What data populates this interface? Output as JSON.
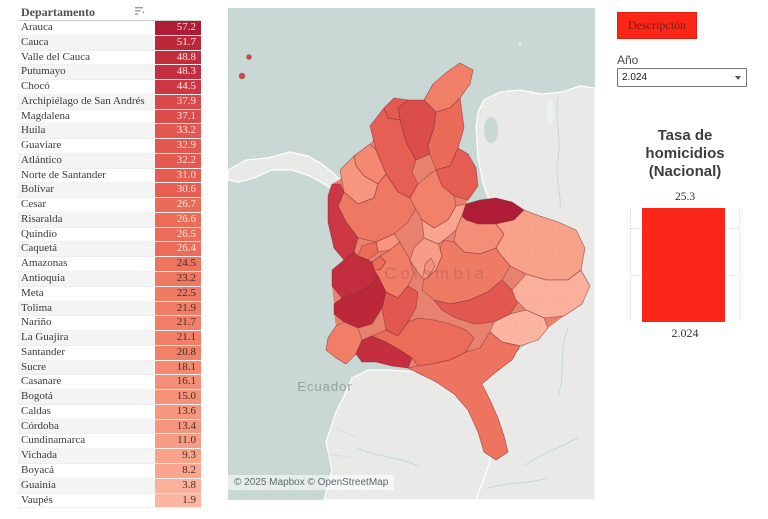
{
  "accent_color": "#fa2617",
  "table": {
    "header": "Departamento",
    "rows": [
      {
        "name": "Arauca",
        "value": "57.2"
      },
      {
        "name": "Cauca",
        "value": "51.7"
      },
      {
        "name": "Valle del Cauca",
        "value": "48.8"
      },
      {
        "name": "Putumayo",
        "value": "48.3"
      },
      {
        "name": "Chocó",
        "value": "44.5"
      },
      {
        "name": "Archipiélago de San Andrés",
        "value": "37.9"
      },
      {
        "name": "Magdalena",
        "value": "37.1"
      },
      {
        "name": "Huila",
        "value": "33.2"
      },
      {
        "name": "Guaviare",
        "value": "32.9"
      },
      {
        "name": "Atlántico",
        "value": "32.2"
      },
      {
        "name": "Norte de Santander",
        "value": "31.0"
      },
      {
        "name": "Bolívar",
        "value": "30.6"
      },
      {
        "name": "Cesar",
        "value": "26.7"
      },
      {
        "name": "Risaralda",
        "value": "26.6"
      },
      {
        "name": "Quindío",
        "value": "26.5"
      },
      {
        "name": "Caquetá",
        "value": "26.4"
      },
      {
        "name": "Amazonas",
        "value": "24.5"
      },
      {
        "name": "Antioquia",
        "value": "23.2"
      },
      {
        "name": "Meta",
        "value": "22.5"
      },
      {
        "name": "Tolima",
        "value": "21.9"
      },
      {
        "name": "Nariño",
        "value": "21.7"
      },
      {
        "name": "La Guajira",
        "value": "21.1"
      },
      {
        "name": "Santander",
        "value": "20.8"
      },
      {
        "name": "Sucre",
        "value": "18.1"
      },
      {
        "name": "Casanare",
        "value": "16.1"
      },
      {
        "name": "Bogotá",
        "value": "15.0"
      },
      {
        "name": "Caldas",
        "value": "13.6"
      },
      {
        "name": "Córdoba",
        "value": "13.4"
      },
      {
        "name": "Cundinamarca",
        "value": "11.0"
      },
      {
        "name": "Vichada",
        "value": "9.3"
      },
      {
        "name": "Boyacá",
        "value": "8.2"
      },
      {
        "name": "Guainía",
        "value": "3.8"
      },
      {
        "name": "Vaupés",
        "value": "1.9"
      }
    ]
  },
  "map": {
    "country_label": "Colombia",
    "neighbor_label": "Ecuador",
    "attribution": "© 2025 Mapbox © OpenStreetMap",
    "sea_color": "#c9d8d4",
    "land_color": "#e9eae8"
  },
  "controls": {
    "description_button": "Descripción",
    "year_label": "Año",
    "year_value": "2.024"
  },
  "national": {
    "title": "Tasa de homicidios (Nacional)",
    "bar_value": "25.3",
    "bar_x_label": "2.024"
  },
  "color_scale": {
    "stops": [
      [
        1.9,
        "#fcb5a1"
      ],
      [
        10,
        "#f9a088"
      ],
      [
        16,
        "#f58e76"
      ],
      [
        21,
        "#f28068"
      ],
      [
        24.5,
        "#ee745f"
      ],
      [
        27,
        "#ec6a57"
      ],
      [
        31,
        "#e65e51"
      ],
      [
        33.5,
        "#e25650"
      ],
      [
        38,
        "#d9494a"
      ],
      [
        44.5,
        "#cc3743"
      ],
      [
        48.5,
        "#c52e3e"
      ],
      [
        52,
        "#bc263a"
      ],
      [
        57.2,
        "#ae1d35"
      ]
    ],
    "light_text_min": 26,
    "dark_text": "#42302d",
    "light_text": "#ffe7e1"
  }
}
